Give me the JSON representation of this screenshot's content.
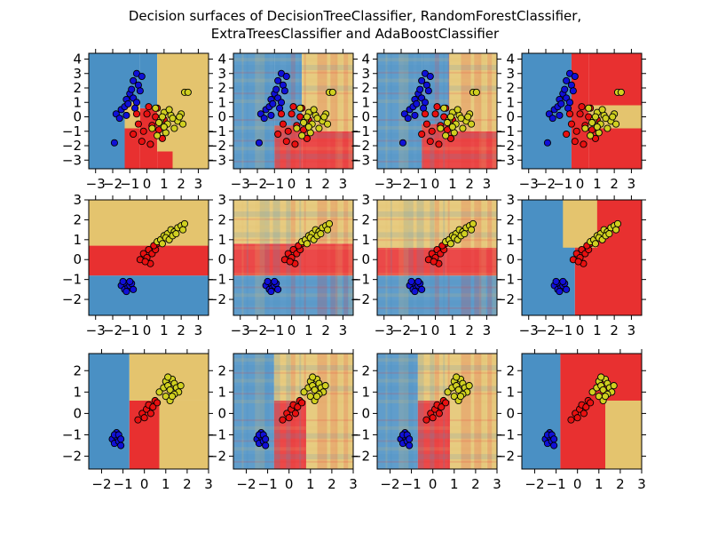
{
  "title_line1": "Decision surfaces of DecisionTreeClassifier, RandomForestClassifier,",
  "title_line2": "ExtraTreesClassifier and AdaBoostClassifier",
  "colors": {
    "class0": "#4a90c4",
    "class1": "#e83030",
    "class2": "#e4c46e",
    "point0": "#1010d8",
    "point1": "#e81010",
    "point2": "#d0d020"
  },
  "chart_data": [
    {
      "type": "scatter",
      "row": 0,
      "col": 0,
      "xlim": [
        -3.4,
        3.6
      ],
      "ylim": [
        -3.6,
        4.4
      ],
      "xticks": [
        -3,
        -2,
        -1,
        0,
        1,
        2,
        3
      ],
      "yticks": [
        -3,
        -2,
        -1,
        0,
        1,
        2,
        3,
        4
      ],
      "surface": [
        {
          "x": [
            -3.4,
            -1.3
          ],
          "y": [
            -3.6,
            4.4
          ],
          "c": 0
        },
        {
          "x": [
            -1.3,
            -0.4
          ],
          "y": [
            -3.6,
            -0.8
          ],
          "c": 1
        },
        {
          "x": [
            -1.3,
            -0.4
          ],
          "y": [
            -0.8,
            1.0
          ],
          "c": 2
        },
        {
          "x": [
            -1.3,
            -0.4
          ],
          "y": [
            1.0,
            4.4
          ],
          "c": 0
        },
        {
          "x": [
            -0.4,
            0.6
          ],
          "y": [
            -3.6,
            0.6
          ],
          "c": 1
        },
        {
          "x": [
            -0.4,
            0.6
          ],
          "y": [
            0.6,
            4.4
          ],
          "c": 0
        },
        {
          "x": [
            0.6,
            1.5
          ],
          "y": [
            -3.6,
            -2.4
          ],
          "c": 1
        },
        {
          "x": [
            0.6,
            1.5
          ],
          "y": [
            -2.4,
            4.4
          ],
          "c": 2
        },
        {
          "x": [
            1.5,
            3.6
          ],
          "y": [
            -3.6,
            4.4
          ],
          "c": 2
        }
      ]
    },
    {
      "type": "scatter",
      "row": 0,
      "col": 1,
      "xlim": [
        -3.4,
        3.6
      ],
      "ylim": [
        -3.6,
        4.4
      ],
      "xticks": [
        -3,
        -2,
        -1,
        0,
        1,
        2,
        3
      ],
      "yticks": [
        -3,
        -2,
        -1,
        0,
        1,
        2,
        3,
        4
      ],
      "blend": true,
      "surface": [
        {
          "x": [
            -3.4,
            -1.0
          ],
          "y": [
            -3.6,
            4.4
          ],
          "c": 0
        },
        {
          "x": [
            -1.0,
            0.6
          ],
          "y": [
            -3.6,
            -0.6
          ],
          "c": 1
        },
        {
          "x": [
            -1.0,
            0.6
          ],
          "y": [
            -0.6,
            4.4
          ],
          "c": 0
        },
        {
          "x": [
            0.6,
            3.6
          ],
          "y": [
            -3.6,
            -1.0
          ],
          "c": 1
        },
        {
          "x": [
            0.6,
            3.6
          ],
          "y": [
            -1.0,
            4.4
          ],
          "c": 2
        }
      ]
    },
    {
      "type": "scatter",
      "row": 0,
      "col": 2,
      "xlim": [
        -3.4,
        3.6
      ],
      "ylim": [
        -3.6,
        4.4
      ],
      "xticks": [
        -3,
        -2,
        -1,
        0,
        1,
        2,
        3
      ],
      "yticks": [
        -3,
        -2,
        -1,
        0,
        1,
        2,
        3,
        4
      ],
      "blend": true,
      "surface": [
        {
          "x": [
            -3.4,
            -0.8
          ],
          "y": [
            -3.6,
            4.4
          ],
          "c": 0
        },
        {
          "x": [
            -0.8,
            0.8
          ],
          "y": [
            -3.6,
            -0.5
          ],
          "c": 1
        },
        {
          "x": [
            -0.8,
            0.8
          ],
          "y": [
            -0.5,
            4.4
          ],
          "c": 0
        },
        {
          "x": [
            0.8,
            3.6
          ],
          "y": [
            -3.6,
            -1.0
          ],
          "c": 1
        },
        {
          "x": [
            0.8,
            3.6
          ],
          "y": [
            -1.0,
            4.4
          ],
          "c": 2
        }
      ]
    },
    {
      "type": "scatter",
      "row": 0,
      "col": 3,
      "xlim": [
        -3.4,
        3.6
      ],
      "ylim": [
        -3.6,
        4.4
      ],
      "xticks": [
        -3,
        -2,
        -1,
        0,
        1,
        2,
        3
      ],
      "yticks": [
        -3,
        -2,
        -1,
        0,
        1,
        2,
        3,
        4
      ],
      "surface": [
        {
          "x": [
            -3.4,
            -0.5
          ],
          "y": [
            -3.6,
            4.4
          ],
          "c": 0
        },
        {
          "x": [
            -0.5,
            0.5
          ],
          "y": [
            -3.6,
            4.4
          ],
          "c": 1
        },
        {
          "x": [
            0.5,
            3.6
          ],
          "y": [
            -3.6,
            -0.8
          ],
          "c": 1
        },
        {
          "x": [
            0.5,
            3.6
          ],
          "y": [
            -0.8,
            0.8
          ],
          "c": 2
        },
        {
          "x": [
            0.5,
            3.6
          ],
          "y": [
            0.8,
            4.4
          ],
          "c": 1
        }
      ]
    },
    {
      "type": "scatter",
      "row": 1,
      "col": 0,
      "xlim": [
        -3.4,
        3.6
      ],
      "ylim": [
        -2.8,
        3.0
      ],
      "xticks": [
        -3,
        -2,
        -1,
        0,
        1,
        2,
        3
      ],
      "yticks": [
        -2,
        -1,
        0,
        1,
        2,
        3
      ],
      "surface": [
        {
          "x": [
            -3.4,
            3.6
          ],
          "y": [
            -2.8,
            -0.8
          ],
          "c": 0
        },
        {
          "x": [
            -3.4,
            3.6
          ],
          "y": [
            -0.8,
            0.7
          ],
          "c": 1
        },
        {
          "x": [
            -3.4,
            3.6
          ],
          "y": [
            0.7,
            3.0
          ],
          "c": 2
        }
      ]
    },
    {
      "type": "scatter",
      "row": 1,
      "col": 1,
      "xlim": [
        -3.4,
        3.6
      ],
      "ylim": [
        -2.8,
        3.0
      ],
      "xticks": [
        -3,
        -2,
        -1,
        0,
        1,
        2,
        3
      ],
      "yticks": [
        -2,
        -1,
        0,
        1,
        2,
        3
      ],
      "blend": true,
      "surface": [
        {
          "x": [
            -3.4,
            3.6
          ],
          "y": [
            -2.8,
            -0.8
          ],
          "c": 0
        },
        {
          "x": [
            -3.4,
            0.8
          ],
          "y": [
            -0.8,
            0.8
          ],
          "c": 1
        },
        {
          "x": [
            0.8,
            3.6
          ],
          "y": [
            -0.8,
            0.8
          ],
          "c": 1
        },
        {
          "x": [
            -3.4,
            3.6
          ],
          "y": [
            0.8,
            3.0
          ],
          "c": 2
        }
      ]
    },
    {
      "type": "scatter",
      "row": 1,
      "col": 2,
      "xlim": [
        -3.4,
        3.6
      ],
      "ylim": [
        -2.8,
        3.0
      ],
      "xticks": [
        -3,
        -2,
        -1,
        0,
        1,
        2,
        3
      ],
      "yticks": [
        -2,
        -1,
        0,
        1,
        2,
        3
      ],
      "blend": true,
      "surface": [
        {
          "x": [
            -3.4,
            3.6
          ],
          "y": [
            -2.8,
            -0.8
          ],
          "c": 0
        },
        {
          "x": [
            -3.4,
            0.6
          ],
          "y": [
            -0.8,
            0.6
          ],
          "c": 1
        },
        {
          "x": [
            0.6,
            3.6
          ],
          "y": [
            -0.8,
            0.6
          ],
          "c": 1
        },
        {
          "x": [
            -3.4,
            3.6
          ],
          "y": [
            0.6,
            3.0
          ],
          "c": 2
        }
      ]
    },
    {
      "type": "scatter",
      "row": 1,
      "col": 3,
      "xlim": [
        -3.4,
        3.6
      ],
      "ylim": [
        -2.8,
        3.0
      ],
      "xticks": [
        -3,
        -2,
        -1,
        0,
        1,
        2,
        3
      ],
      "yticks": [
        -2,
        -1,
        0,
        1,
        2,
        3
      ],
      "surface": [
        {
          "x": [
            -3.4,
            -0.3
          ],
          "y": [
            -2.8,
            3.0
          ],
          "c": 0
        },
        {
          "x": [
            -0.3,
            3.6
          ],
          "y": [
            -2.8,
            3.0
          ],
          "c": 1
        },
        {
          "x": [
            -1.0,
            1.0
          ],
          "y": [
            0.6,
            3.0
          ],
          "c": 2
        }
      ]
    },
    {
      "type": "scatter",
      "row": 2,
      "col": 0,
      "xlim": [
        -2.6,
        3.0
      ],
      "ylim": [
        -2.6,
        2.8
      ],
      "xticks": [
        -2,
        -1,
        0,
        1,
        2,
        3
      ],
      "yticks": [
        -2,
        -1,
        0,
        1,
        2
      ],
      "surface": [
        {
          "x": [
            -2.6,
            -0.7
          ],
          "y": [
            -2.6,
            2.8
          ],
          "c": 0
        },
        {
          "x": [
            -0.7,
            0.7
          ],
          "y": [
            -2.6,
            0.6
          ],
          "c": 1
        },
        {
          "x": [
            -0.7,
            3.0
          ],
          "y": [
            0.6,
            2.8
          ],
          "c": 2
        },
        {
          "x": [
            0.7,
            3.0
          ],
          "y": [
            -2.6,
            0.6
          ],
          "c": 2
        }
      ]
    },
    {
      "type": "scatter",
      "row": 2,
      "col": 1,
      "xlim": [
        -2.6,
        3.0
      ],
      "ylim": [
        -2.6,
        2.8
      ],
      "xticks": [
        -2,
        -1,
        0,
        1,
        2,
        3
      ],
      "yticks": [
        -2,
        -1,
        0,
        1,
        2
      ],
      "blend": true,
      "surface": [
        {
          "x": [
            -2.6,
            -0.7
          ],
          "y": [
            -2.6,
            2.8
          ],
          "c": 0
        },
        {
          "x": [
            -0.7,
            0.8
          ],
          "y": [
            -2.6,
            0.6
          ],
          "c": 1
        },
        {
          "x": [
            -0.7,
            3.0
          ],
          "y": [
            0.6,
            2.8
          ],
          "c": 2
        },
        {
          "x": [
            0.8,
            3.0
          ],
          "y": [
            -2.6,
            0.6
          ],
          "c": 2
        }
      ]
    },
    {
      "type": "scatter",
      "row": 2,
      "col": 2,
      "xlim": [
        -2.6,
        3.0
      ],
      "ylim": [
        -2.6,
        2.8
      ],
      "xticks": [
        -2,
        -1,
        0,
        1,
        2,
        3
      ],
      "yticks": [
        -2,
        -1,
        0,
        1,
        2
      ],
      "blend": true,
      "surface": [
        {
          "x": [
            -2.6,
            -0.7
          ],
          "y": [
            -2.6,
            2.8
          ],
          "c": 0
        },
        {
          "x": [
            -0.7,
            0.8
          ],
          "y": [
            -2.6,
            0.6
          ],
          "c": 1
        },
        {
          "x": [
            -0.7,
            3.0
          ],
          "y": [
            0.6,
            2.8
          ],
          "c": 2
        },
        {
          "x": [
            0.8,
            3.0
          ],
          "y": [
            -2.6,
            0.6
          ],
          "c": 2
        }
      ]
    },
    {
      "type": "scatter",
      "row": 2,
      "col": 3,
      "xlim": [
        -2.6,
        3.0
      ],
      "ylim": [
        -2.6,
        2.8
      ],
      "xticks": [
        -2,
        -1,
        0,
        1,
        2,
        3
      ],
      "yticks": [
        -2,
        -1,
        0,
        1,
        2
      ],
      "surface": [
        {
          "x": [
            -2.6,
            -0.8
          ],
          "y": [
            -2.6,
            2.8
          ],
          "c": 0
        },
        {
          "x": [
            -0.8,
            3.0
          ],
          "y": [
            -2.6,
            2.8
          ],
          "c": 1
        },
        {
          "x": [
            1.3,
            3.0
          ],
          "y": [
            -2.6,
            0.6
          ],
          "c": 2
        }
      ]
    }
  ],
  "points_sepal_row": {
    "class0": [
      [
        -1.8,
        0.2
      ],
      [
        -1.5,
        0.5
      ],
      [
        -1.2,
        1.2
      ],
      [
        -1.0,
        1.6
      ],
      [
        -0.9,
        1.9
      ],
      [
        -0.8,
        2.5
      ],
      [
        -0.6,
        3.0
      ],
      [
        -0.5,
        2.2
      ],
      [
        -0.3,
        2.8
      ],
      [
        -1.6,
        -0.1
      ],
      [
        -1.3,
        0.7
      ],
      [
        -1.1,
        0.9
      ],
      [
        -0.8,
        1.3
      ],
      [
        -0.6,
        1.0
      ],
      [
        -0.4,
        1.8
      ],
      [
        -1.9,
        -1.8
      ],
      [
        -1.2,
        0.1
      ],
      [
        -0.7,
        0.6
      ]
    ],
    "class1": [
      [
        -0.8,
        -1.2
      ],
      [
        -0.5,
        -0.5
      ],
      [
        -0.2,
        -1.0
      ],
      [
        0.0,
        0.2
      ],
      [
        0.3,
        -0.6
      ],
      [
        0.5,
        0.0
      ],
      [
        0.7,
        -0.9
      ],
      [
        0.2,
        -1.9
      ],
      [
        -0.3,
        -1.7
      ],
      [
        1.0,
        -0.2
      ],
      [
        0.6,
        0.6
      ],
      [
        -0.6,
        0.2
      ],
      [
        0.1,
        0.7
      ],
      [
        0.9,
        -1.5
      ]
    ],
    "class2": [
      [
        0.5,
        0.6
      ],
      [
        0.8,
        -0.2
      ],
      [
        1.0,
        0.3
      ],
      [
        1.2,
        -0.5
      ],
      [
        1.4,
        0.1
      ],
      [
        1.6,
        -0.8
      ],
      [
        1.8,
        -0.3
      ],
      [
        2.0,
        0.2
      ],
      [
        2.2,
        1.7
      ],
      [
        2.4,
        1.7
      ],
      [
        0.3,
        -0.8
      ],
      [
        0.6,
        -1.3
      ],
      [
        1.1,
        -1.1
      ],
      [
        1.3,
        0.5
      ],
      [
        1.5,
        -0.1
      ],
      [
        0.9,
        0.0
      ],
      [
        2.1,
        -0.5
      ],
      [
        0.7,
        -0.4
      ],
      [
        1.9,
        0.0
      ],
      [
        1.0,
        -0.7
      ]
    ]
  },
  "points_petal_row2": {
    "class0": [
      [
        -1.5,
        -1.3
      ],
      [
        -1.3,
        -1.5
      ],
      [
        -1.2,
        -1.2
      ],
      [
        -1.1,
        -1.4
      ],
      [
        -1.0,
        -1.3
      ],
      [
        -0.9,
        -1.2
      ],
      [
        -0.8,
        -1.5
      ],
      [
        -1.4,
        -1.1
      ],
      [
        -1.2,
        -1.6
      ],
      [
        -1.0,
        -1.1
      ]
    ],
    "class1": [
      [
        -0.4,
        0.0
      ],
      [
        -0.2,
        0.3
      ],
      [
        0.0,
        0.1
      ],
      [
        0.1,
        0.5
      ],
      [
        0.3,
        0.3
      ],
      [
        0.5,
        0.5
      ],
      [
        0.6,
        0.8
      ],
      [
        0.2,
        -0.2
      ],
      [
        -0.1,
        -0.1
      ],
      [
        0.4,
        0.7
      ]
    ],
    "class2": [
      [
        0.6,
        0.9
      ],
      [
        0.8,
        1.0
      ],
      [
        1.0,
        1.2
      ],
      [
        1.2,
        1.3
      ],
      [
        1.4,
        1.5
      ],
      [
        1.6,
        1.4
      ],
      [
        1.8,
        1.6
      ],
      [
        2.0,
        1.7
      ],
      [
        0.9,
        0.8
      ],
      [
        1.1,
        1.1
      ],
      [
        1.3,
        1.0
      ],
      [
        1.5,
        1.2
      ],
      [
        2.2,
        1.8
      ],
      [
        1.7,
        1.3
      ],
      [
        2.1,
        1.5
      ]
    ]
  },
  "points_petal_row3": {
    "class0": [
      [
        -1.5,
        -1.2
      ],
      [
        -1.4,
        -1.4
      ],
      [
        -1.3,
        -1.1
      ],
      [
        -1.2,
        -1.3
      ],
      [
        -1.1,
        -1.5
      ],
      [
        -1.3,
        -0.9
      ],
      [
        -1.4,
        -1.0
      ],
      [
        -1.2,
        -1.0
      ],
      [
        -1.1,
        -1.2
      ]
    ],
    "class1": [
      [
        -0.3,
        -0.3
      ],
      [
        -0.1,
        0.0
      ],
      [
        0.1,
        0.2
      ],
      [
        0.2,
        0.4
      ],
      [
        0.4,
        0.3
      ],
      [
        0.5,
        0.6
      ],
      [
        0.3,
        0.0
      ],
      [
        0.0,
        -0.2
      ],
      [
        0.6,
        0.5
      ]
    ],
    "class2": [
      [
        0.7,
        1.0
      ],
      [
        0.9,
        1.2
      ],
      [
        1.0,
        1.5
      ],
      [
        1.1,
        1.3
      ],
      [
        1.2,
        1.1
      ],
      [
        1.3,
        1.6
      ],
      [
        1.4,
        1.4
      ],
      [
        1.5,
        1.2
      ],
      [
        1.6,
        1.0
      ],
      [
        1.7,
        1.3
      ],
      [
        1.0,
        0.8
      ],
      [
        1.2,
        0.6
      ],
      [
        1.4,
        0.9
      ],
      [
        1.1,
        1.7
      ],
      [
        1.3,
        0.8
      ]
    ]
  }
}
